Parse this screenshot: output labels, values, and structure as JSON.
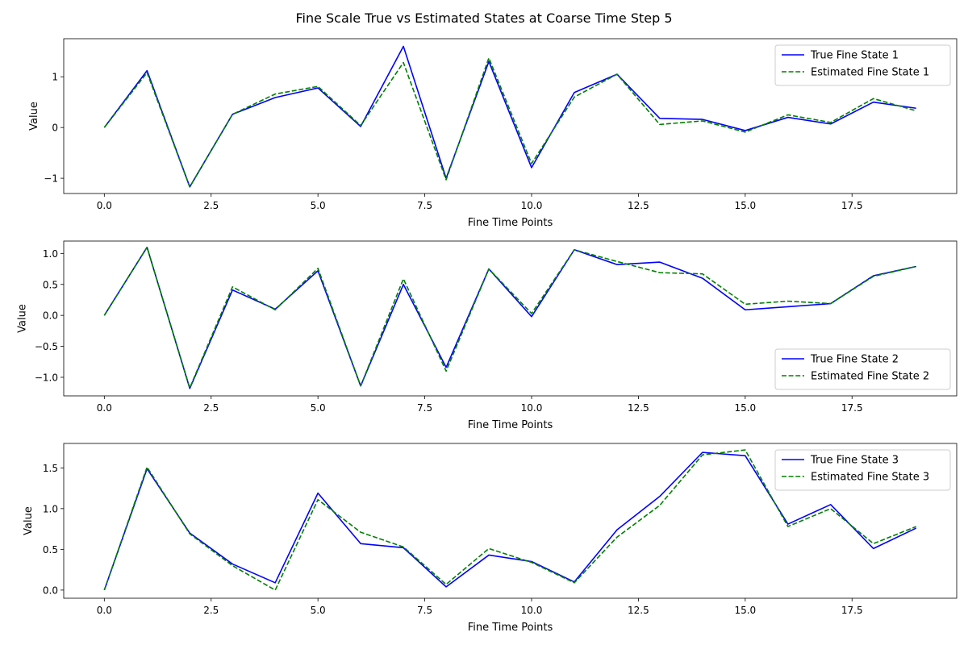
{
  "figure": {
    "title": "Fine Scale True vs Estimated States at Coarse Time Step 5"
  },
  "chart_data": [
    {
      "type": "line",
      "xlabel": "Fine Time Points",
      "ylabel": "Value",
      "xlim": [
        -0.95,
        19.95
      ],
      "ylim": [
        -1.3,
        1.75
      ],
      "xticks": [
        0.0,
        2.5,
        5.0,
        7.5,
        10.0,
        12.5,
        15.0,
        17.5
      ],
      "xtick_labels": [
        "0.0",
        "2.5",
        "5.0",
        "7.5",
        "10.0",
        "12.5",
        "15.0",
        "17.5"
      ],
      "yticks": [
        -1,
        0,
        1
      ],
      "ytick_labels": [
        "−1",
        "0",
        "1"
      ],
      "legend_loc": "upper right",
      "x": [
        0,
        1,
        2,
        3,
        4,
        5,
        6,
        7,
        8,
        9,
        10,
        11,
        12,
        13,
        14,
        15,
        16,
        17,
        18,
        19
      ],
      "series": [
        {
          "name": "True Fine State 1",
          "color": "#0000ff",
          "dash": "solid",
          "values": [
            0.0,
            1.12,
            -1.17,
            0.26,
            0.59,
            0.78,
            0.02,
            1.6,
            -1.0,
            1.3,
            -0.79,
            0.69,
            1.05,
            0.18,
            0.16,
            -0.06,
            0.2,
            0.07,
            0.5,
            0.38
          ]
        },
        {
          "name": "Estimated Fine State 1",
          "color": "#008000",
          "dash": "dashed",
          "values": [
            0.0,
            1.08,
            -1.17,
            0.26,
            0.66,
            0.81,
            0.04,
            1.28,
            -1.03,
            1.37,
            -0.71,
            0.6,
            1.05,
            0.06,
            0.13,
            -0.09,
            0.25,
            0.1,
            0.57,
            0.33
          ]
        }
      ]
    },
    {
      "type": "line",
      "xlabel": "Fine Time Points",
      "ylabel": "Value",
      "xlim": [
        -0.95,
        19.95
      ],
      "ylim": [
        -1.3,
        1.2
      ],
      "xticks": [
        0.0,
        2.5,
        5.0,
        7.5,
        10.0,
        12.5,
        15.0,
        17.5
      ],
      "xtick_labels": [
        "0.0",
        "2.5",
        "5.0",
        "7.5",
        "10.0",
        "12.5",
        "15.0",
        "17.5"
      ],
      "yticks": [
        -1.0,
        -0.5,
        0.0,
        0.5,
        1.0
      ],
      "ytick_labels": [
        "−1.0",
        "−0.5",
        "0.0",
        "0.5",
        "1.0"
      ],
      "legend_loc": "lower right",
      "x": [
        0,
        1,
        2,
        3,
        4,
        5,
        6,
        7,
        8,
        9,
        10,
        11,
        12,
        13,
        14,
        15,
        16,
        17,
        18,
        19
      ],
      "series": [
        {
          "name": "True Fine State 2",
          "color": "#0000ff",
          "dash": "solid",
          "values": [
            0.0,
            1.1,
            -1.18,
            0.41,
            0.1,
            0.72,
            -1.14,
            0.5,
            -0.84,
            0.75,
            -0.02,
            1.06,
            0.82,
            0.86,
            0.6,
            0.09,
            0.14,
            0.19,
            0.64,
            0.79
          ]
        },
        {
          "name": "Estimated Fine State 2",
          "color": "#008000",
          "dash": "dashed",
          "values": [
            0.0,
            1.1,
            -1.17,
            0.46,
            0.09,
            0.76,
            -1.14,
            0.59,
            -0.9,
            0.75,
            0.03,
            1.06,
            0.87,
            0.69,
            0.67,
            0.18,
            0.23,
            0.19,
            0.63,
            0.79
          ]
        }
      ]
    },
    {
      "type": "line",
      "xlabel": "Fine Time Points",
      "ylabel": "Value",
      "xlim": [
        -0.95,
        19.95
      ],
      "ylim": [
        -0.1,
        1.8
      ],
      "xticks": [
        0.0,
        2.5,
        5.0,
        7.5,
        10.0,
        12.5,
        15.0,
        17.5
      ],
      "xtick_labels": [
        "0.0",
        "2.5",
        "5.0",
        "7.5",
        "10.0",
        "12.5",
        "15.0",
        "17.5"
      ],
      "yticks": [
        0.0,
        0.5,
        1.0,
        1.5
      ],
      "ytick_labels": [
        "0.0",
        "0.5",
        "1.0",
        "1.5"
      ],
      "legend_loc": "upper right",
      "x": [
        0,
        1,
        2,
        3,
        4,
        5,
        6,
        7,
        8,
        9,
        10,
        11,
        12,
        13,
        14,
        15,
        16,
        17,
        18,
        19
      ],
      "series": [
        {
          "name": "True Fine State 3",
          "color": "#0000ff",
          "dash": "solid",
          "values": [
            0.0,
            1.49,
            0.7,
            0.32,
            0.09,
            1.19,
            0.57,
            0.52,
            0.04,
            0.43,
            0.35,
            0.1,
            0.74,
            1.15,
            1.69,
            1.65,
            0.81,
            1.05,
            0.51,
            0.76
          ]
        },
        {
          "name": "Estimated Fine State 3",
          "color": "#008000",
          "dash": "dashed",
          "values": [
            0.0,
            1.51,
            0.69,
            0.3,
            0.0,
            1.11,
            0.71,
            0.53,
            0.07,
            0.51,
            0.34,
            0.09,
            0.65,
            1.04,
            1.66,
            1.72,
            0.78,
            1.0,
            0.57,
            0.78
          ]
        }
      ]
    }
  ]
}
